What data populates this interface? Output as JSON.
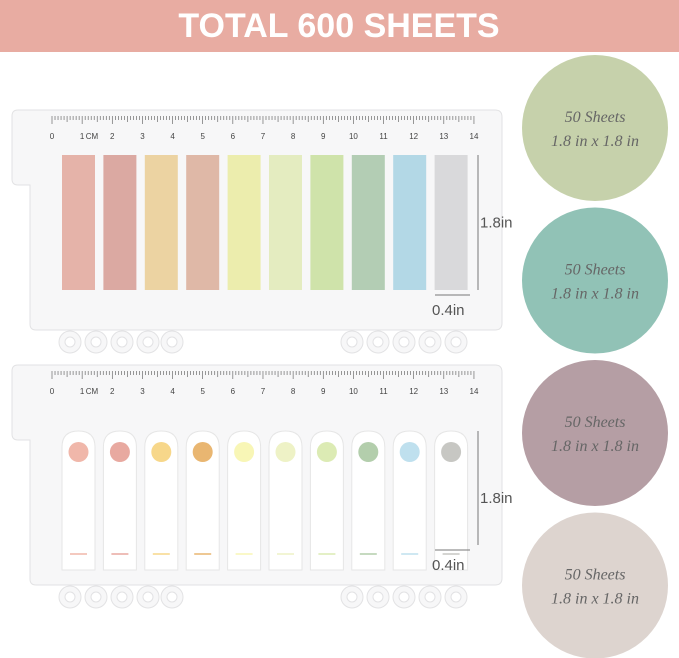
{
  "header": {
    "title": "TOTAL 600 SHEETS"
  },
  "ruler": {
    "numbers": [
      0,
      1,
      2,
      3,
      4,
      5,
      6,
      7,
      8,
      9,
      10,
      11,
      12,
      13,
      14
    ],
    "unit": "CM"
  },
  "sets": [
    {
      "style": "strip",
      "colors": [
        "#e5b3a9",
        "#dba9a2",
        "#ecd3a2",
        "#dfb8a7",
        "#ecedad",
        "#e4ecc0",
        "#cfe3aa",
        "#b3cdb4",
        "#b3d8e6",
        "#d9d9db"
      ],
      "height_label": "1.8in",
      "width_label": "0.4in"
    },
    {
      "style": "tab",
      "colors": [
        "#f0b7aa",
        "#e8a9a0",
        "#f7d78a",
        "#e9b671",
        "#f8f6b6",
        "#eef2c6",
        "#dcebb4",
        "#b3ceac",
        "#bfe0ee",
        "#c7c7c3"
      ],
      "height_label": "1.8in",
      "width_label": "0.4in"
    }
  ],
  "circles": [
    {
      "sheets": "50 Sheets",
      "size": "1.8 in x 1.8 in",
      "color": "#c6d1ab"
    },
    {
      "sheets": "50 Sheets",
      "size": "1.8 in x 1.8 in",
      "color": "#91c2b6"
    },
    {
      "sheets": "50 Sheets",
      "size": "1.8 in x 1.8 in",
      "color": "#b59ea4"
    },
    {
      "sheets": "50 Sheets",
      "size": "1.8 in x 1.8 in",
      "color": "#ddd4cf"
    }
  ]
}
